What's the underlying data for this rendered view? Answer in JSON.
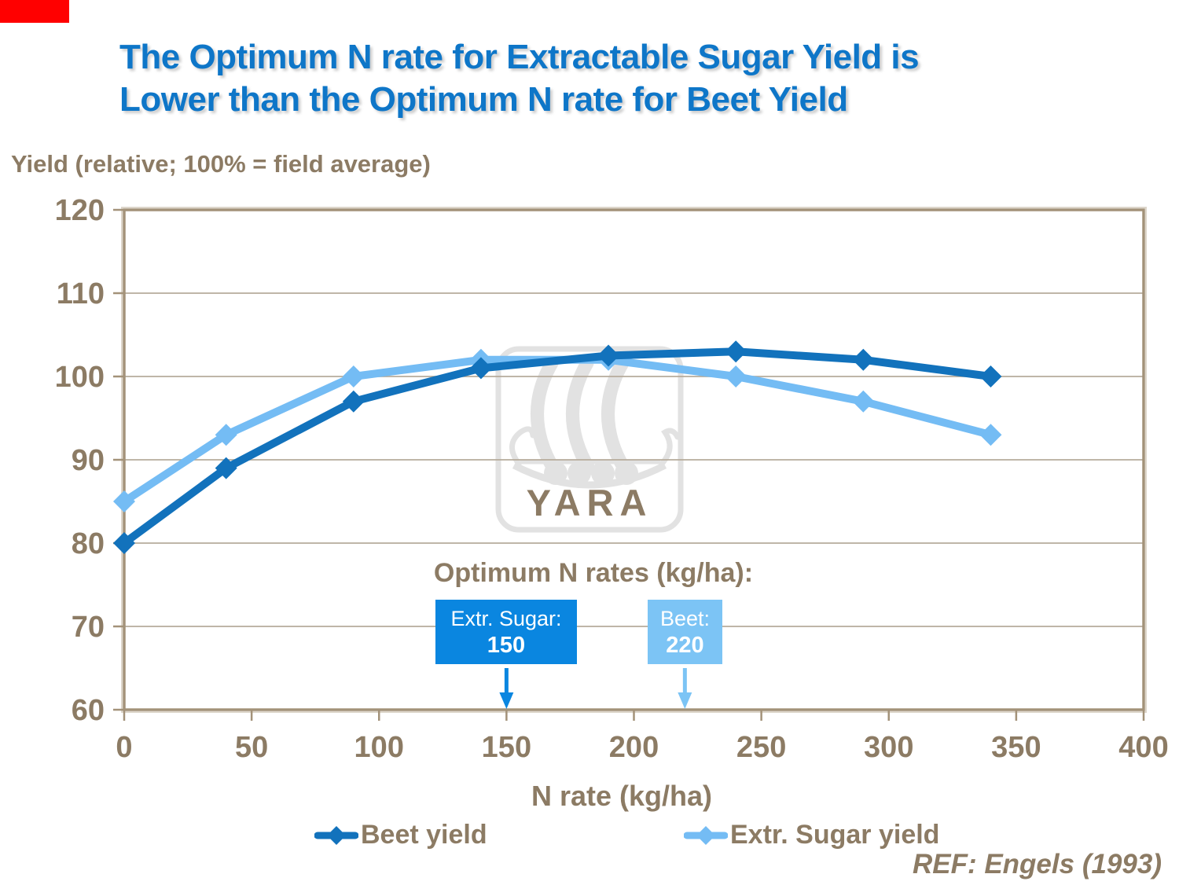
{
  "slide": {
    "accent_color": "#ff0000",
    "title_line1": "The Optimum N rate for Extractable Sugar Yield is",
    "title_line2": "Lower than the Optimum N rate for Beet Yield",
    "title_color": "#0e76c8",
    "ref_text": "REF: Engels (1993)"
  },
  "chart_data": {
    "type": "line",
    "ylabel": "Yield (relative; 100% = field average)",
    "xlabel": "N rate (kg/ha)",
    "xlim": [
      0,
      400
    ],
    "ylim": [
      60,
      120
    ],
    "x_ticks": [
      0,
      50,
      100,
      150,
      200,
      250,
      300,
      350,
      400
    ],
    "y_ticks": [
      60,
      70,
      80,
      90,
      100,
      110,
      120
    ],
    "grid": "horizontal-major",
    "legend_position": "bottom",
    "x": [
      0,
      40,
      90,
      140,
      190,
      240,
      290,
      340
    ],
    "series": [
      {
        "name": "Beet yield",
        "color": "#1272bc",
        "marker": "diamond",
        "values": [
          80,
          89,
          97,
          101,
          102.5,
          103,
          102,
          100
        ]
      },
      {
        "name": "Extr. Sugar yield",
        "color": "#74bcf4",
        "marker": "diamond",
        "values": [
          85,
          93,
          100,
          102,
          102,
          100,
          97,
          93
        ]
      }
    ],
    "annotations": {
      "heading": "Optimum N rates (kg/ha):",
      "boxes": [
        {
          "label": "Extr. Sugar:",
          "value": "150",
          "x": 150,
          "color": "#0a86e0",
          "text_color": "#ffffff"
        },
        {
          "label": "Beet:",
          "value": "220",
          "x": 220,
          "color": "#7cc4f5",
          "text_color": "#ffffff"
        }
      ]
    },
    "watermark": "YARA"
  },
  "colors": {
    "axis_text": "#8c7b64",
    "grid": "#b6ab9b",
    "frame": "#a39279",
    "frame_highlight": "#ddd6cb",
    "watermark": "#e2e2e2"
  }
}
